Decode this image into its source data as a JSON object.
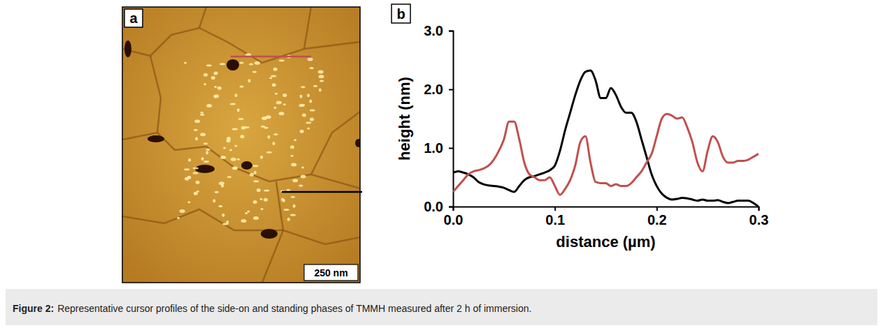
{
  "caption": {
    "label": "Figure 2:",
    "text": "Representative cursor profiles of the side-on and standing phases of TMMH measured after 2 h of immersion."
  },
  "image_panel": {
    "label": "a",
    "scale_bar": "250 nm"
  },
  "chart_data": {
    "label": "b",
    "type": "line",
    "xlabel": "distance (µm)",
    "ylabel": "height (nm)",
    "xlim": [
      0,
      0.3
    ],
    "ylim": [
      0,
      3
    ],
    "xticks": [
      {
        "value": 0,
        "label": "0.0"
      },
      {
        "value": 0.1,
        "label": "0.1"
      },
      {
        "value": 0.2,
        "label": "0.2"
      },
      {
        "value": 0.3,
        "label": "0.3"
      }
    ],
    "yticks": [
      {
        "value": 0,
        "label": "0.0"
      },
      {
        "value": 1,
        "label": "1.0"
      },
      {
        "value": 2,
        "label": "2.0"
      },
      {
        "value": 3,
        "label": "3.0"
      }
    ],
    "x": [
      0,
      0.005,
      0.01,
      0.015,
      0.02,
      0.025,
      0.03,
      0.035,
      0.04,
      0.045,
      0.05,
      0.055,
      0.06,
      0.065,
      0.07,
      0.075,
      0.08,
      0.085,
      0.09,
      0.095,
      0.1,
      0.105,
      0.11,
      0.115,
      0.12,
      0.125,
      0.13,
      0.135,
      0.14,
      0.145,
      0.15,
      0.155,
      0.16,
      0.165,
      0.17,
      0.175,
      0.18,
      0.185,
      0.19,
      0.195,
      0.2,
      0.205,
      0.21,
      0.215,
      0.22,
      0.225,
      0.23,
      0.235,
      0.24,
      0.245,
      0.25,
      0.255,
      0.26,
      0.265,
      0.27,
      0.275,
      0.28,
      0.285,
      0.29,
      0.295,
      0.3
    ],
    "series": [
      {
        "color": "#000000",
        "values": [
          0.58,
          0.6,
          0.58,
          0.55,
          0.5,
          0.42,
          0.38,
          0.36,
          0.35,
          0.34,
          0.32,
          0.28,
          0.25,
          0.35,
          0.45,
          0.5,
          0.52,
          0.55,
          0.58,
          0.62,
          0.7,
          0.95,
          1.3,
          1.6,
          1.9,
          2.15,
          2.3,
          2.32,
          2.15,
          1.85,
          1.85,
          2.02,
          1.9,
          1.7,
          1.6,
          1.6,
          1.45,
          1.15,
          0.85,
          0.55,
          0.35,
          0.22,
          0.15,
          0.12,
          0.13,
          0.15,
          0.14,
          0.12,
          0.1,
          0.12,
          0.1,
          0.1,
          0.11,
          0.08,
          0.06,
          0.08,
          0.1,
          0.1,
          0.1,
          0.06,
          0.0
        ]
      },
      {
        "color": "#c0504d",
        "values": [
          0.25,
          0.35,
          0.45,
          0.55,
          0.6,
          0.62,
          0.65,
          0.7,
          0.8,
          0.95,
          1.15,
          1.45,
          1.45,
          1.15,
          0.75,
          0.55,
          0.5,
          0.45,
          0.45,
          0.5,
          0.35,
          0.2,
          0.3,
          0.45,
          0.7,
          1.1,
          1.2,
          0.75,
          0.42,
          0.4,
          0.4,
          0.35,
          0.38,
          0.35,
          0.35,
          0.4,
          0.5,
          0.6,
          0.75,
          0.9,
          1.2,
          1.5,
          1.58,
          1.55,
          1.5,
          1.52,
          1.35,
          1.1,
          0.75,
          0.6,
          0.95,
          1.2,
          1.1,
          0.85,
          0.75,
          0.75,
          0.78,
          0.78,
          0.8,
          0.85,
          0.9
        ]
      }
    ]
  }
}
